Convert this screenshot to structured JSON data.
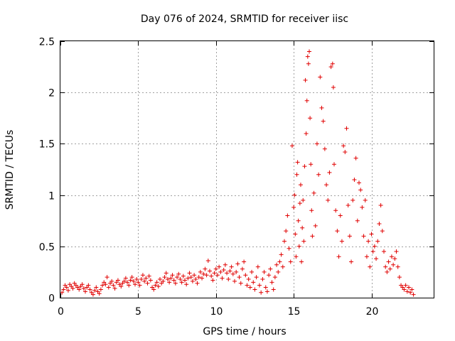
{
  "chart_data": {
    "type": "scatter",
    "title": "Day 076 of 2024, SRMTID for receiver iisc",
    "xlabel": "GPS time / hours",
    "ylabel": "SRMTID / TECUs",
    "xlim": [
      0,
      24
    ],
    "ylim": [
      0,
      2.5
    ],
    "xticks": [
      0,
      5,
      10,
      15,
      20
    ],
    "xtick_labels": [
      "0",
      "5",
      "10",
      "15",
      "20"
    ],
    "yticks": [
      0,
      0.5,
      1,
      1.5,
      2,
      2.5
    ],
    "ytick_labels": [
      "0",
      "0.5",
      "1",
      "1.5",
      "2",
      "2.5"
    ],
    "grid": true,
    "marker": "+",
    "color": "#e00000",
    "series": [
      {
        "name": "SRMTID",
        "points": [
          [
            0.1,
            0.05
          ],
          [
            0.2,
            0.08
          ],
          [
            0.3,
            0.12
          ],
          [
            0.4,
            0.1
          ],
          [
            0.5,
            0.07
          ],
          [
            0.6,
            0.13
          ],
          [
            0.7,
            0.11
          ],
          [
            0.8,
            0.09
          ],
          [
            0.9,
            0.14
          ],
          [
            1.0,
            0.12
          ],
          [
            1.1,
            0.1
          ],
          [
            1.2,
            0.08
          ],
          [
            1.3,
            0.11
          ],
          [
            1.4,
            0.13
          ],
          [
            1.5,
            0.09
          ],
          [
            1.6,
            0.06
          ],
          [
            1.7,
            0.1
          ],
          [
            1.8,
            0.12
          ],
          [
            1.9,
            0.08
          ],
          [
            2.0,
            0.05
          ],
          [
            2.1,
            0.03
          ],
          [
            2.2,
            0.07
          ],
          [
            2.3,
            0.1
          ],
          [
            2.4,
            0.06
          ],
          [
            2.5,
            0.04
          ],
          [
            2.6,
            0.08
          ],
          [
            2.7,
            0.12
          ],
          [
            2.8,
            0.15
          ],
          [
            2.9,
            0.13
          ],
          [
            3.0,
            0.2
          ],
          [
            3.1,
            0.1
          ],
          [
            3.2,
            0.14
          ],
          [
            3.3,
            0.16
          ],
          [
            3.4,
            0.12
          ],
          [
            3.5,
            0.09
          ],
          [
            3.6,
            0.15
          ],
          [
            3.7,
            0.17
          ],
          [
            3.8,
            0.13
          ],
          [
            3.9,
            0.11
          ],
          [
            4.0,
            0.14
          ],
          [
            4.1,
            0.16
          ],
          [
            4.2,
            0.19
          ],
          [
            4.3,
            0.15
          ],
          [
            4.4,
            0.12
          ],
          [
            4.5,
            0.17
          ],
          [
            4.6,
            0.2
          ],
          [
            4.7,
            0.16
          ],
          [
            4.8,
            0.13
          ],
          [
            4.9,
            0.18
          ],
          [
            5.0,
            0.15
          ],
          [
            5.1,
            0.12
          ],
          [
            5.2,
            0.18
          ],
          [
            5.3,
            0.22
          ],
          [
            5.4,
            0.16
          ],
          [
            5.5,
            0.19
          ],
          [
            5.6,
            0.14
          ],
          [
            5.7,
            0.21
          ],
          [
            5.8,
            0.17
          ],
          [
            5.9,
            0.1
          ],
          [
            6.0,
            0.08
          ],
          [
            6.1,
            0.12
          ],
          [
            6.2,
            0.15
          ],
          [
            6.3,
            0.11
          ],
          [
            6.4,
            0.18
          ],
          [
            6.5,
            0.14
          ],
          [
            6.6,
            0.16
          ],
          [
            6.7,
            0.2
          ],
          [
            6.8,
            0.24
          ],
          [
            6.9,
            0.18
          ],
          [
            7.0,
            0.15
          ],
          [
            7.1,
            0.19
          ],
          [
            7.2,
            0.22
          ],
          [
            7.3,
            0.17
          ],
          [
            7.4,
            0.14
          ],
          [
            7.5,
            0.2
          ],
          [
            7.6,
            0.23
          ],
          [
            7.7,
            0.18
          ],
          [
            7.8,
            0.15
          ],
          [
            7.9,
            0.21
          ],
          [
            8.0,
            0.17
          ],
          [
            8.1,
            0.13
          ],
          [
            8.2,
            0.19
          ],
          [
            8.3,
            0.24
          ],
          [
            8.4,
            0.2
          ],
          [
            8.5,
            0.16
          ],
          [
            8.6,
            0.22
          ],
          [
            8.7,
            0.18
          ],
          [
            8.8,
            0.14
          ],
          [
            8.9,
            0.2
          ],
          [
            9.0,
            0.25
          ],
          [
            9.1,
            0.19
          ],
          [
            9.2,
            0.23
          ],
          [
            9.3,
            0.28
          ],
          [
            9.4,
            0.22
          ],
          [
            9.5,
            0.36
          ],
          [
            9.6,
            0.26
          ],
          [
            9.7,
            0.21
          ],
          [
            9.8,
            0.17
          ],
          [
            9.9,
            0.24
          ],
          [
            10.0,
            0.28
          ],
          [
            10.1,
            0.22
          ],
          [
            10.2,
            0.3
          ],
          [
            10.3,
            0.25
          ],
          [
            10.4,
            0.19
          ],
          [
            10.5,
            0.27
          ],
          [
            10.6,
            0.32
          ],
          [
            10.7,
            0.24
          ],
          [
            10.8,
            0.18
          ],
          [
            10.9,
            0.26
          ],
          [
            11.0,
            0.3
          ],
          [
            11.1,
            0.23
          ],
          [
            11.2,
            0.16
          ],
          [
            11.3,
            0.25
          ],
          [
            11.4,
            0.33
          ],
          [
            11.5,
            0.2
          ],
          [
            11.6,
            0.14
          ],
          [
            11.7,
            0.28
          ],
          [
            11.8,
            0.35
          ],
          [
            11.9,
            0.22
          ],
          [
            12.0,
            0.12
          ],
          [
            12.1,
            0.18
          ],
          [
            12.2,
            0.1
          ],
          [
            12.3,
            0.25
          ],
          [
            12.4,
            0.15
          ],
          [
            12.5,
            0.08
          ],
          [
            12.6,
            0.2
          ],
          [
            12.7,
            0.3
          ],
          [
            12.8,
            0.12
          ],
          [
            12.9,
            0.05
          ],
          [
            13.0,
            0.18
          ],
          [
            13.1,
            0.25
          ],
          [
            13.2,
            0.1
          ],
          [
            13.3,
            0.06
          ],
          [
            13.4,
            0.22
          ],
          [
            13.5,
            0.28
          ],
          [
            13.6,
            0.15
          ],
          [
            13.7,
            0.08
          ],
          [
            13.8,
            0.2
          ],
          [
            13.9,
            0.32
          ],
          [
            14.0,
            0.25
          ],
          [
            14.1,
            0.35
          ],
          [
            14.2,
            0.42
          ],
          [
            14.3,
            0.3
          ],
          [
            14.4,
            0.55
          ],
          [
            14.5,
            0.65
          ],
          [
            14.6,
            0.8
          ],
          [
            14.7,
            0.48
          ],
          [
            14.8,
            0.35
          ],
          [
            14.9,
            1.48
          ],
          [
            15.0,
            0.88
          ],
          [
            15.05,
            1.0
          ],
          [
            15.1,
            0.62
          ],
          [
            15.15,
            0.4
          ],
          [
            15.2,
            1.2
          ],
          [
            15.25,
            1.32
          ],
          [
            15.3,
            0.75
          ],
          [
            15.35,
            0.5
          ],
          [
            15.4,
            0.92
          ],
          [
            15.45,
            1.1
          ],
          [
            15.5,
            0.35
          ],
          [
            15.55,
            0.68
          ],
          [
            15.6,
            0.95
          ],
          [
            15.65,
            0.55
          ],
          [
            15.7,
            1.28
          ],
          [
            15.75,
            2.12
          ],
          [
            15.8,
            1.6
          ],
          [
            15.85,
            1.92
          ],
          [
            15.9,
            2.35
          ],
          [
            15.95,
            2.28
          ],
          [
            16.0,
            2.4
          ],
          [
            16.05,
            1.75
          ],
          [
            16.1,
            1.3
          ],
          [
            16.15,
            0.85
          ],
          [
            16.2,
            0.6
          ],
          [
            16.3,
            1.02
          ],
          [
            16.4,
            0.7
          ],
          [
            16.5,
            1.5
          ],
          [
            16.6,
            1.2
          ],
          [
            16.7,
            2.15
          ],
          [
            16.8,
            1.85
          ],
          [
            16.9,
            1.72
          ],
          [
            17.0,
            1.45
          ],
          [
            17.1,
            1.1
          ],
          [
            17.2,
            0.95
          ],
          [
            17.3,
            1.22
          ],
          [
            17.4,
            2.25
          ],
          [
            17.5,
            2.28
          ],
          [
            17.55,
            2.05
          ],
          [
            17.6,
            1.3
          ],
          [
            17.7,
            0.85
          ],
          [
            17.8,
            0.65
          ],
          [
            17.9,
            0.4
          ],
          [
            18.0,
            0.8
          ],
          [
            18.1,
            0.55
          ],
          [
            18.2,
            1.48
          ],
          [
            18.3,
            1.42
          ],
          [
            18.4,
            1.65
          ],
          [
            18.5,
            0.9
          ],
          [
            18.6,
            0.6
          ],
          [
            18.7,
            0.35
          ],
          [
            18.8,
            0.95
          ],
          [
            18.9,
            1.15
          ],
          [
            19.0,
            1.36
          ],
          [
            19.1,
            0.75
          ],
          [
            19.2,
            1.12
          ],
          [
            19.3,
            1.05
          ],
          [
            19.4,
            0.88
          ],
          [
            19.5,
            0.6
          ],
          [
            19.6,
            0.95
          ],
          [
            19.7,
            0.4
          ],
          [
            19.8,
            0.55
          ],
          [
            19.9,
            0.3
          ],
          [
            20.0,
            0.62
          ],
          [
            20.1,
            0.45
          ],
          [
            20.2,
            0.5
          ],
          [
            20.3,
            0.38
          ],
          [
            20.4,
            0.55
          ],
          [
            20.5,
            0.72
          ],
          [
            20.6,
            0.9
          ],
          [
            20.7,
            0.65
          ],
          [
            20.8,
            0.45
          ],
          [
            20.9,
            0.3
          ],
          [
            21.0,
            0.25
          ],
          [
            21.1,
            0.35
          ],
          [
            21.2,
            0.28
          ],
          [
            21.3,
            0.4
          ],
          [
            21.4,
            0.32
          ],
          [
            21.5,
            0.38
          ],
          [
            21.6,
            0.45
          ],
          [
            21.7,
            0.3
          ],
          [
            21.8,
            0.2
          ],
          [
            21.9,
            0.12
          ],
          [
            22.0,
            0.1
          ],
          [
            22.1,
            0.08
          ],
          [
            22.2,
            0.12
          ],
          [
            22.3,
            0.06
          ],
          [
            22.4,
            0.1
          ],
          [
            22.5,
            0.05
          ],
          [
            22.6,
            0.08
          ],
          [
            22.7,
            0.03
          ]
        ]
      }
    ]
  }
}
